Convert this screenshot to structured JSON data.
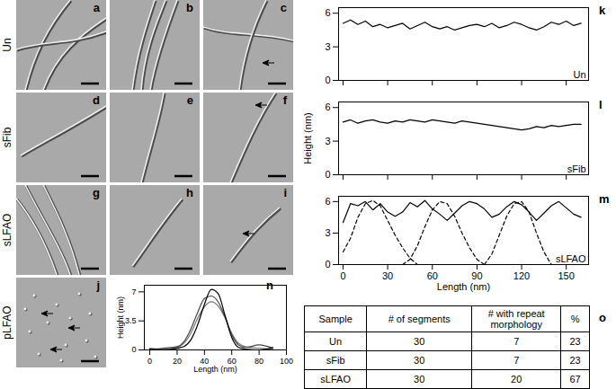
{
  "image_panels": [
    {
      "label": "Un",
      "panels": [
        "a",
        "b",
        "c"
      ]
    },
    {
      "label": "sFib",
      "panels": [
        "d",
        "e",
        "f"
      ]
    },
    {
      "label": "sLFAO",
      "panels": [
        "g",
        "h",
        "i"
      ]
    },
    {
      "label": "pLFAO",
      "panels": [
        "j"
      ]
    }
  ],
  "chart_data": [
    {
      "type": "line",
      "panel": "k",
      "annotations": [
        "Un"
      ],
      "x": [
        0,
        5,
        10,
        15,
        20,
        25,
        30,
        35,
        40,
        45,
        50,
        55,
        60,
        65,
        70,
        75,
        80,
        85,
        90,
        95,
        100,
        105,
        110,
        115,
        120,
        125,
        130,
        135,
        140,
        145,
        150,
        155,
        160
      ],
      "series": [
        {
          "color": "#000000",
          "line_style": "solid",
          "values": [
            5.1,
            5.4,
            5.0,
            5.3,
            4.8,
            5.0,
            4.7,
            4.9,
            5.1,
            4.6,
            4.9,
            5.2,
            4.8,
            4.6,
            4.8,
            4.5,
            4.7,
            4.9,
            5.0,
            4.8,
            5.1,
            4.7,
            4.9,
            5.2,
            5.0,
            4.7,
            4.5,
            4.8,
            5.2,
            5.0,
            5.3,
            4.9,
            5.1
          ]
        }
      ],
      "xlim": [
        -3,
        165
      ],
      "xticks": [
        0,
        30,
        60,
        90,
        120,
        150
      ],
      "ylim": [
        0,
        6.5
      ],
      "yticks": [
        0,
        3,
        6
      ],
      "tick_labels": "y"
    },
    {
      "type": "line",
      "panel": "l",
      "annotations": [
        "sFib"
      ],
      "y_label": "Height (nm)",
      "x": [
        0,
        5,
        10,
        15,
        20,
        25,
        30,
        35,
        40,
        45,
        50,
        55,
        60,
        65,
        70,
        75,
        80,
        85,
        90,
        95,
        100,
        105,
        110,
        115,
        120,
        125,
        130,
        135,
        140,
        145,
        150,
        155,
        160
      ],
      "series": [
        {
          "color": "#000000",
          "line_style": "solid",
          "values": [
            4.7,
            4.9,
            4.6,
            4.8,
            4.9,
            4.7,
            4.6,
            4.8,
            4.7,
            4.9,
            4.8,
            4.7,
            4.9,
            4.8,
            4.7,
            4.6,
            4.8,
            4.7,
            4.6,
            4.5,
            4.4,
            4.3,
            4.2,
            4.1,
            4.0,
            4.1,
            4.3,
            4.2,
            4.4,
            4.3,
            4.4,
            4.5,
            4.5
          ]
        }
      ],
      "xlim": [
        -3,
        165
      ],
      "xticks": [
        0,
        30,
        60,
        90,
        120,
        150
      ],
      "ylim": [
        0,
        6.5
      ],
      "yticks": [
        0,
        3,
        6
      ],
      "tick_labels": "y"
    },
    {
      "type": "line",
      "panel": "m",
      "annotations": [
        "sLFAO"
      ],
      "x_label": "Length (nm)",
      "series": [
        {
          "color": "#000000",
          "line_style": "solid",
          "x": [
            0,
            5,
            10,
            15,
            20,
            25,
            30,
            35,
            40,
            45,
            50,
            55,
            60,
            65,
            70,
            75,
            80,
            85,
            90,
            95,
            100,
            105,
            110,
            115,
            120,
            125,
            130,
            135,
            140,
            145,
            150,
            155,
            160
          ],
          "values": [
            4.0,
            5.8,
            5.6,
            6.0,
            5.2,
            5.8,
            5.0,
            4.6,
            5.0,
            5.9,
            5.5,
            6.1,
            5.3,
            4.8,
            4.2,
            4.9,
            5.6,
            6.0,
            5.8,
            5.3,
            4.5,
            4.8,
            5.5,
            6.0,
            5.7,
            5.0,
            4.2,
            4.9,
            5.6,
            6.0,
            5.4,
            4.8,
            4.5
          ]
        },
        {
          "color": "#000000",
          "line_style": "dashed",
          "x": [
            0,
            5,
            10,
            15,
            20,
            25,
            30,
            35,
            40,
            45,
            50
          ],
          "values": [
            1.2,
            2.5,
            4.5,
            5.8,
            6.1,
            5.6,
            4.2,
            2.8,
            1.6,
            0.6,
            0
          ]
        },
        {
          "color": "#000000",
          "line_style": "dashed",
          "x": [
            40,
            45,
            50,
            55,
            60,
            65,
            70,
            75,
            80,
            85,
            90,
            95
          ],
          "values": [
            0,
            0.5,
            1.8,
            3.6,
            5.2,
            6.0,
            5.8,
            4.6,
            3.0,
            1.6,
            0.5,
            0
          ]
        },
        {
          "color": "#000000",
          "line_style": "dashed",
          "x": [
            95,
            100,
            105,
            110,
            115,
            120,
            125,
            130,
            135,
            140
          ],
          "values": [
            0,
            1.0,
            2.8,
            4.6,
            5.8,
            6.0,
            5.0,
            3.0,
            1.2,
            0
          ]
        }
      ],
      "xlim": [
        -3,
        165
      ],
      "xticks": [
        0,
        30,
        60,
        90,
        120,
        150
      ],
      "ylim": [
        0,
        6.5
      ],
      "yticks": [
        0,
        3,
        6
      ]
    },
    {
      "type": "line",
      "panel": "n",
      "x_label": "Length (nm)",
      "y_label": "Height (nm)",
      "x": [
        0,
        10,
        20,
        25,
        30,
        35,
        40,
        45,
        50,
        55,
        60,
        65,
        70,
        80,
        90
      ],
      "series": [
        {
          "color": "#777777",
          "line_style": "solid",
          "values": [
            0.2,
            0.1,
            0.3,
            0.8,
            2.0,
            3.8,
            5.2,
            5.8,
            5.3,
            3.9,
            2.0,
            0.8,
            0.4,
            0.2,
            0.1
          ]
        },
        {
          "color": "#444444",
          "line_style": "solid",
          "values": [
            0,
            0.2,
            0.4,
            1.0,
            2.5,
            4.5,
            6.2,
            6.5,
            5.8,
            4.0,
            1.8,
            0.6,
            0.3,
            0.6,
            0.2
          ]
        },
        {
          "color": "#000000",
          "line_style": "solid",
          "values": [
            0.1,
            0,
            0.2,
            0.4,
            1.2,
            3.0,
            5.5,
            7.3,
            6.8,
            4.2,
            1.5,
            0.3,
            0.1,
            0,
            0.3
          ]
        }
      ],
      "xlim": [
        -4,
        100
      ],
      "xticks": [
        0,
        20,
        40,
        60,
        80,
        100
      ],
      "ylim": [
        0,
        7.8
      ],
      "yticks": [
        0,
        3.5,
        7
      ]
    }
  ],
  "table": {
    "panel": "o",
    "header": [
      "Sample",
      "# of segments",
      "# with repeat morphology",
      "%"
    ],
    "rows": [
      [
        "Un",
        30,
        7,
        23
      ],
      [
        "sFib",
        30,
        7,
        23
      ],
      [
        "sLFAO",
        30,
        20,
        67
      ]
    ]
  }
}
